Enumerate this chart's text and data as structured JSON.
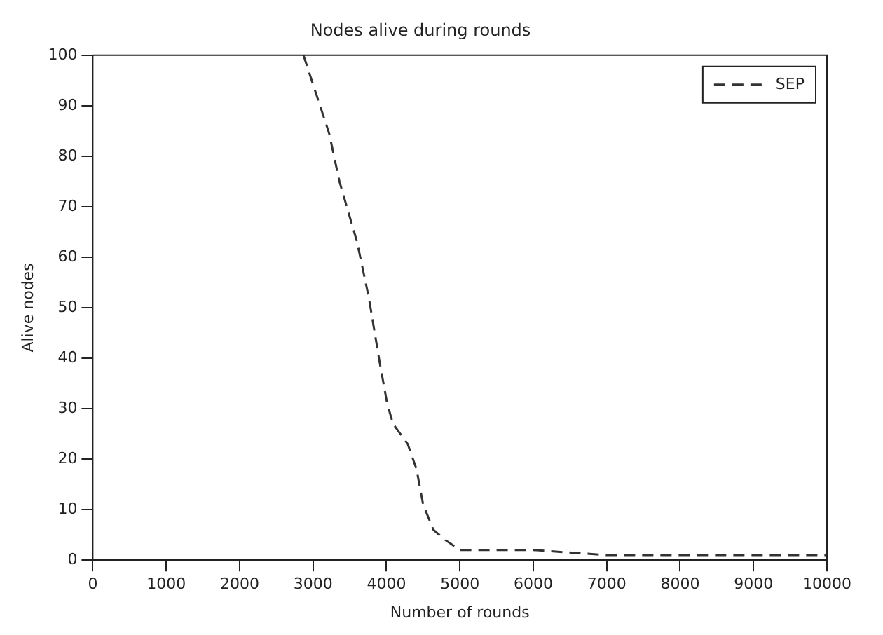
{
  "chart_data": {
    "type": "line",
    "title": "Nodes alive during rounds",
    "xlabel": "Number of rounds",
    "ylabel": "Alive nodes",
    "x": [
      2870,
      3220,
      3360,
      3600,
      3760,
      3910,
      4010,
      4090,
      4290,
      4410,
      4500,
      4640,
      4800,
      5000,
      6000,
      7000,
      8000,
      9000,
      10000
    ],
    "series": [
      {
        "name": "SEP",
        "color": "#333333",
        "values": [
          100,
          84.5,
          75,
          63,
          52,
          39,
          31,
          27,
          23,
          18,
          11,
          6,
          4,
          2,
          2,
          1,
          1,
          1,
          1
        ]
      }
    ],
    "xlim": [
      0,
      10000
    ],
    "xticks": [
      0,
      1000,
      2000,
      3000,
      4000,
      5000,
      6000,
      7000,
      8000,
      9000,
      10000
    ],
    "ylim": [
      0,
      100
    ],
    "yticks": [
      0,
      10,
      20,
      30,
      40,
      50,
      60,
      70,
      80,
      90,
      100
    ],
    "grid": false,
    "legend": "top right",
    "marker": "none",
    "line_style": "dashed"
  }
}
